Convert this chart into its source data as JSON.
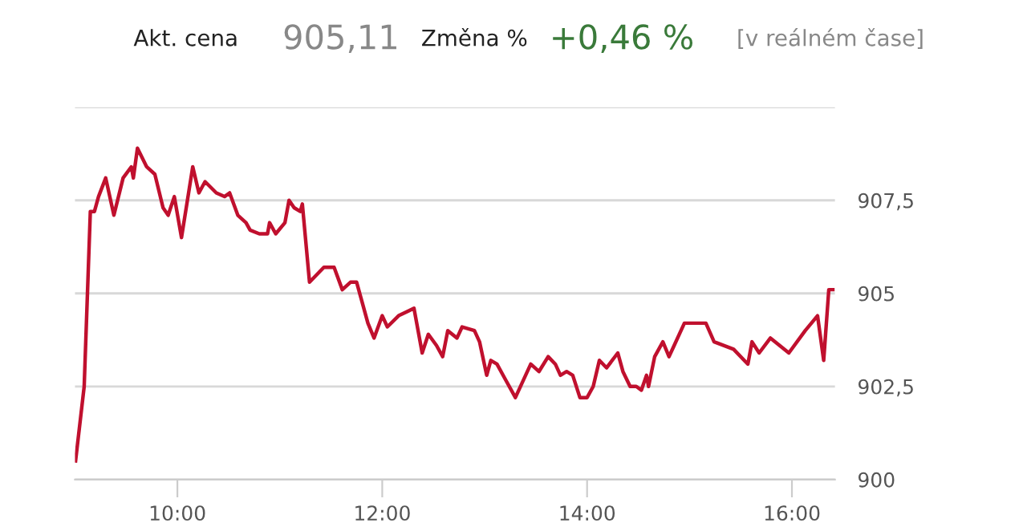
{
  "chart_data": {
    "type": "line",
    "annotations": [
      "Akt. cena",
      "905,11",
      "Změna %",
      "+0,46 %",
      "[v reálném čase]"
    ],
    "series": [
      {
        "color": "#c0102e",
        "x": [
          9.006,
          9.09,
          9.15,
          9.19,
          9.23,
          9.3,
          9.38,
          9.47,
          9.55,
          9.57,
          9.61,
          9.7,
          9.78,
          9.86,
          9.91,
          9.97,
          10.04,
          10.15,
          10.21,
          10.27,
          10.38,
          10.46,
          10.51,
          10.59,
          10.67,
          10.71,
          10.8,
          10.88,
          10.9,
          10.96,
          11.05,
          11.09,
          11.14,
          11.2,
          11.22,
          11.29,
          11.43,
          11.53,
          11.61,
          11.69,
          11.75,
          11.79,
          11.86,
          11.92,
          12.0,
          12.05,
          12.16,
          12.31,
          12.39,
          12.45,
          12.53,
          12.59,
          12.64,
          12.73,
          12.78,
          12.9,
          12.95,
          13.02,
          13.06,
          13.12,
          13.2,
          13.3,
          13.45,
          13.53,
          13.62,
          13.69,
          13.74,
          13.8,
          13.86,
          13.93,
          14.0,
          14.06,
          14.12,
          14.19,
          14.3,
          14.35,
          14.42,
          14.48,
          14.53,
          14.58,
          14.6,
          14.66,
          14.74,
          14.8,
          14.85,
          14.95,
          15.16,
          15.24,
          15.43,
          15.57,
          15.61,
          15.68,
          15.79,
          15.97,
          16.13,
          16.25,
          16.31,
          16.36,
          16.4
        ],
        "values": [
          900.5,
          902.5,
          907.2,
          907.2,
          907.6,
          908.1,
          907.1,
          908.1,
          908.4,
          908.1,
          908.9,
          908.4,
          908.2,
          907.3,
          907.1,
          907.6,
          906.5,
          908.4,
          907.7,
          908.0,
          907.7,
          907.6,
          907.7,
          907.1,
          906.9,
          906.7,
          906.6,
          906.6,
          906.9,
          906.6,
          906.9,
          907.5,
          907.3,
          907.2,
          907.4,
          905.3,
          905.7,
          905.7,
          905.1,
          905.3,
          905.3,
          904.9,
          904.2,
          903.8,
          904.4,
          904.1,
          904.4,
          904.6,
          903.4,
          903.9,
          903.6,
          903.3,
          904.0,
          903.8,
          904.1,
          904.0,
          903.7,
          902.8,
          903.2,
          903.1,
          902.7,
          902.2,
          903.1,
          902.9,
          903.3,
          903.1,
          902.8,
          902.9,
          902.8,
          902.2,
          902.2,
          902.5,
          903.2,
          903.0,
          903.4,
          902.9,
          902.5,
          902.5,
          902.4,
          902.8,
          902.5,
          903.3,
          903.7,
          903.3,
          903.6,
          904.2,
          904.2,
          903.7,
          903.5,
          903.1,
          903.7,
          903.4,
          903.8,
          903.4,
          904.0,
          904.4,
          903.2,
          905.1,
          905.1
        ]
      }
    ],
    "xlim": [
      9,
      16.42
    ],
    "xticks": [
      {
        "value": 10,
        "label": "10:00"
      },
      {
        "value": 12,
        "label": "12:00"
      },
      {
        "value": 14,
        "label": "14:00"
      },
      {
        "value": 16,
        "label": "16:00"
      }
    ],
    "ylim": [
      900,
      910
    ],
    "yticks": [
      900,
      {
        "value": 902.5,
        "label": "902,5"
      },
      905,
      {
        "value": 907.5,
        "label": "907,5"
      },
      {
        "value": 910,
        "label": null
      }
    ],
    "grid": "y",
    "legend": false,
    "marker": "none",
    "line_style": "solid"
  }
}
